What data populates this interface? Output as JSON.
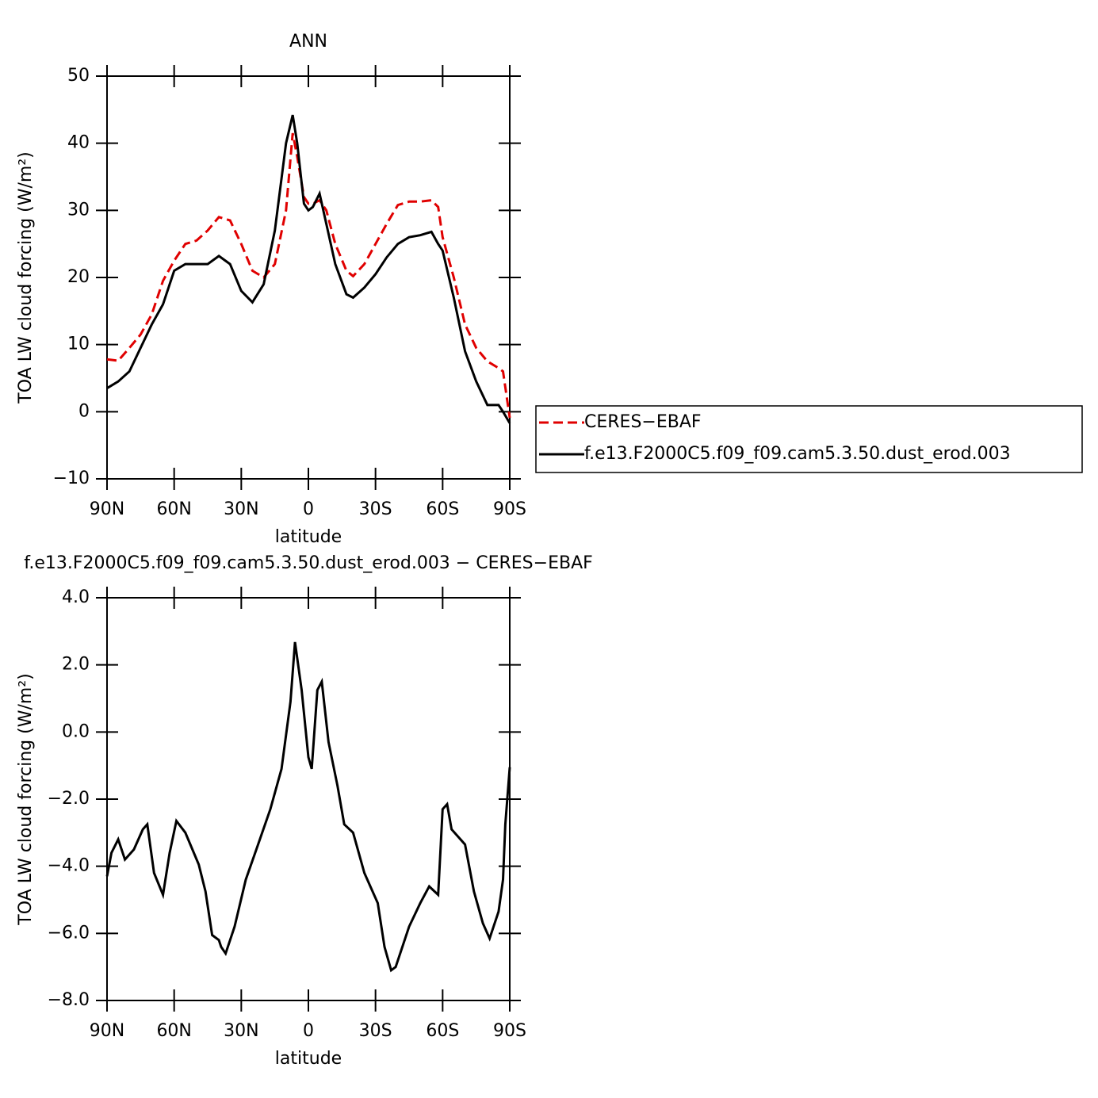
{
  "chart_data": [
    {
      "type": "line",
      "title": "ANN",
      "xlabel": "latitude",
      "ylabel": "TOA LW cloud forcing (W/m²)",
      "xlim": [
        90,
        -90
      ],
      "xticks": [
        {
          "value": 90,
          "label": "90N"
        },
        {
          "value": 60,
          "label": "60N"
        },
        {
          "value": 30,
          "label": "30N"
        },
        0,
        {
          "value": -30,
          "label": "30S"
        },
        {
          "value": -60,
          "label": "60S"
        },
        {
          "value": -90,
          "label": "90S"
        }
      ],
      "ylim": [
        -10,
        50
      ],
      "yticks": [
        {
          "value": -10,
          "label": "−10"
        },
        0,
        10,
        20,
        30,
        40,
        50
      ],
      "legend": "right",
      "x": [
        90,
        85,
        80,
        75,
        70,
        65,
        60,
        55,
        50,
        45,
        40,
        35,
        30,
        25,
        20,
        15,
        10,
        7,
        5,
        2,
        0,
        -2,
        -5,
        -8,
        -12,
        -17,
        -20,
        -25,
        -30,
        -35,
        -40,
        -45,
        -50,
        -55,
        -58,
        -60,
        -65,
        -70,
        -75,
        -80,
        -85,
        -87,
        -90
      ],
      "series": [
        {
          "name": "CERES−EBAF",
          "color": "#e00000",
          "line_style": "dashed",
          "values": [
            7.8,
            7.6,
            9.5,
            11.5,
            14.5,
            19.5,
            22.5,
            25,
            25.5,
            27,
            29,
            28.5,
            25,
            21,
            20,
            22,
            30,
            41.5,
            38,
            32,
            31,
            31,
            31.5,
            30,
            25,
            21,
            20.2,
            22,
            25,
            28,
            30.8,
            31.3,
            31.3,
            31.5,
            30.5,
            26,
            20,
            13,
            9.5,
            7.5,
            6.5,
            6,
            -0.9
          ]
        },
        {
          "name": "f.e13.F2000C5.f09_f09.cam5.3.50.dust_erod.003",
          "color": "#000000",
          "line_style": "solid",
          "values": [
            3.5,
            4.5,
            6,
            9.5,
            13,
            16,
            21,
            22,
            22,
            22,
            23.2,
            22,
            18,
            16.3,
            19,
            27,
            40,
            44.2,
            40,
            31,
            30,
            30.5,
            32.5,
            28,
            22,
            17.5,
            17,
            18.5,
            20.5,
            23,
            25,
            26,
            26.3,
            26.8,
            25,
            24,
            17,
            9,
            4.5,
            1,
            1,
            0,
            -1.7
          ]
        }
      ]
    },
    {
      "type": "line",
      "title": "f.e13.F2000C5.f09_f09.cam5.3.50.dust_erod.003 − CERES−EBAF",
      "xlabel": "latitude",
      "ylabel": "TOA LW cloud forcing (W/m²)",
      "xlim": [
        90,
        -90
      ],
      "xticks": [
        {
          "value": 90,
          "label": "90N"
        },
        {
          "value": 60,
          "label": "60N"
        },
        {
          "value": 30,
          "label": "30N"
        },
        0,
        {
          "value": -30,
          "label": "30S"
        },
        {
          "value": -60,
          "label": "60S"
        },
        {
          "value": -90,
          "label": "90S"
        }
      ],
      "ylim": [
        -8,
        4
      ],
      "yticks": [
        {
          "value": -8,
          "label": "−8.0"
        },
        {
          "value": -6,
          "label": "−6.0"
        },
        {
          "value": -4,
          "label": "−4.0"
        },
        {
          "value": -2,
          "label": "−2.0"
        },
        {
          "value": 0,
          "label": "0.0"
        },
        {
          "value": 2,
          "label": "2.0"
        },
        {
          "value": 4,
          "label": "4.0"
        }
      ],
      "color": "#000000",
      "x": [
        90,
        88,
        85,
        82,
        78,
        74,
        72,
        69,
        65,
        62,
        59,
        55,
        49,
        46,
        43,
        40,
        39,
        37,
        33,
        28,
        23,
        17,
        12,
        8,
        6,
        3,
        0,
        -1.5,
        -4,
        -6,
        -9,
        -13,
        -16,
        -20,
        -25,
        -31,
        -34,
        -37,
        -39,
        -45,
        -50,
        -54,
        -58,
        -60,
        -62,
        -64,
        -70,
        -74,
        -78,
        -81,
        -85,
        -87,
        -88,
        -90
      ],
      "values": [
        -4.3,
        -3.6,
        -3.2,
        -3.8,
        -3.5,
        -2.9,
        -2.75,
        -4.2,
        -4.85,
        -3.6,
        -2.65,
        -3.0,
        -3.95,
        -4.75,
        -6.05,
        -6.2,
        -6.4,
        -6.6,
        -5.8,
        -4.4,
        -3.45,
        -2.3,
        -1.1,
        0.9,
        2.68,
        1.25,
        -0.75,
        -1.1,
        1.25,
        1.5,
        -0.3,
        -1.6,
        -2.75,
        -3.0,
        -4.2,
        -5.1,
        -6.4,
        -7.1,
        -7.0,
        -5.8,
        -5.1,
        -4.6,
        -4.85,
        -2.3,
        -2.15,
        -2.9,
        -3.35,
        -4.75,
        -5.7,
        -6.15,
        -5.35,
        -4.4,
        -2.75,
        -1.05
      ]
    }
  ]
}
